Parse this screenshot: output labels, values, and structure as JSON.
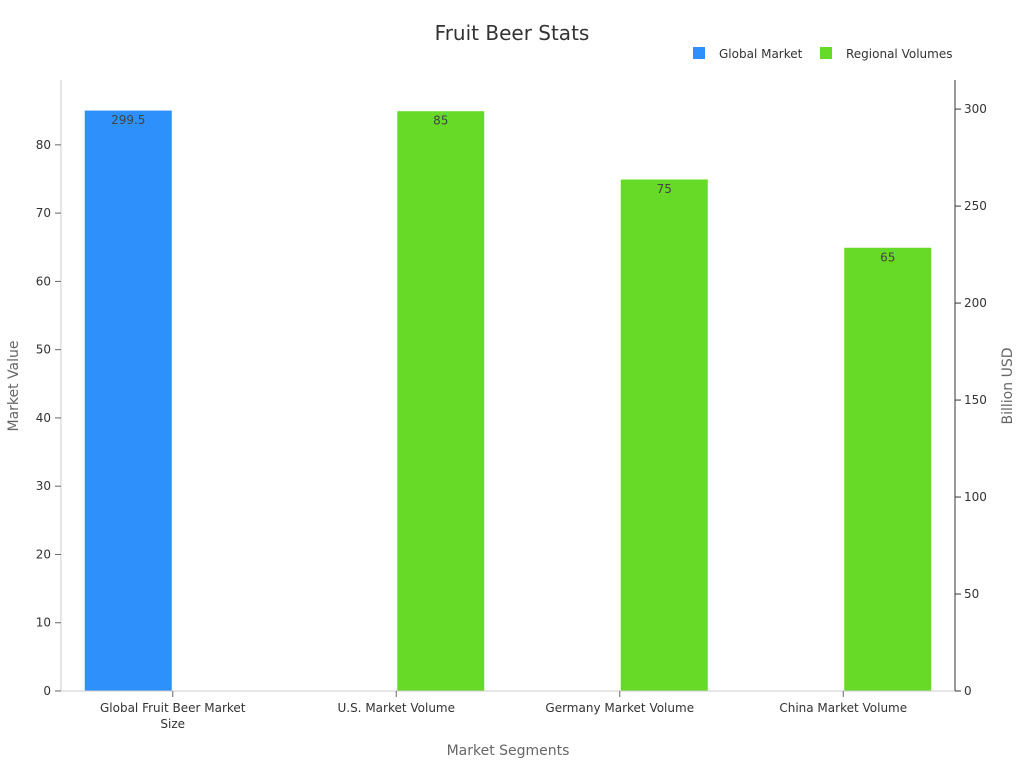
{
  "colors": {
    "global_market": "#2E90FA",
    "regional_volumes": "#66DA26",
    "axis": "#cccccc",
    "tick": "#666666"
  },
  "chart_data": {
    "type": "bar",
    "title": "Fruit Beer Stats",
    "xlabel": "Market Segments",
    "ylabel": "Market Value",
    "ylabel_right": "Billion USD",
    "categories": [
      [
        "Global Fruit Beer Market",
        "Size"
      ],
      [
        "U.S. Market Volume"
      ],
      [
        "Germany Market Volume"
      ],
      [
        "China Market Volume"
      ]
    ],
    "series": [
      {
        "name": "Global Market",
        "axis": "right",
        "values": [
          299.5,
          null,
          null,
          null
        ],
        "labels": [
          "299.5",
          "",
          "",
          ""
        ]
      },
      {
        "name": "Regional Volumes",
        "axis": "left",
        "values": [
          null,
          85,
          75,
          65
        ],
        "labels": [
          "",
          "85",
          "75",
          "65"
        ]
      }
    ],
    "ylim": [
      0,
      89.5
    ],
    "y_ticks": [
      0,
      10,
      20,
      30,
      40,
      50,
      60,
      70,
      80
    ],
    "ylim_right": [
      0,
      315
    ],
    "y_ticks_right": [
      0,
      50,
      100,
      150,
      200,
      250,
      300
    ],
    "legend_position": "top-right",
    "grid": false
  }
}
